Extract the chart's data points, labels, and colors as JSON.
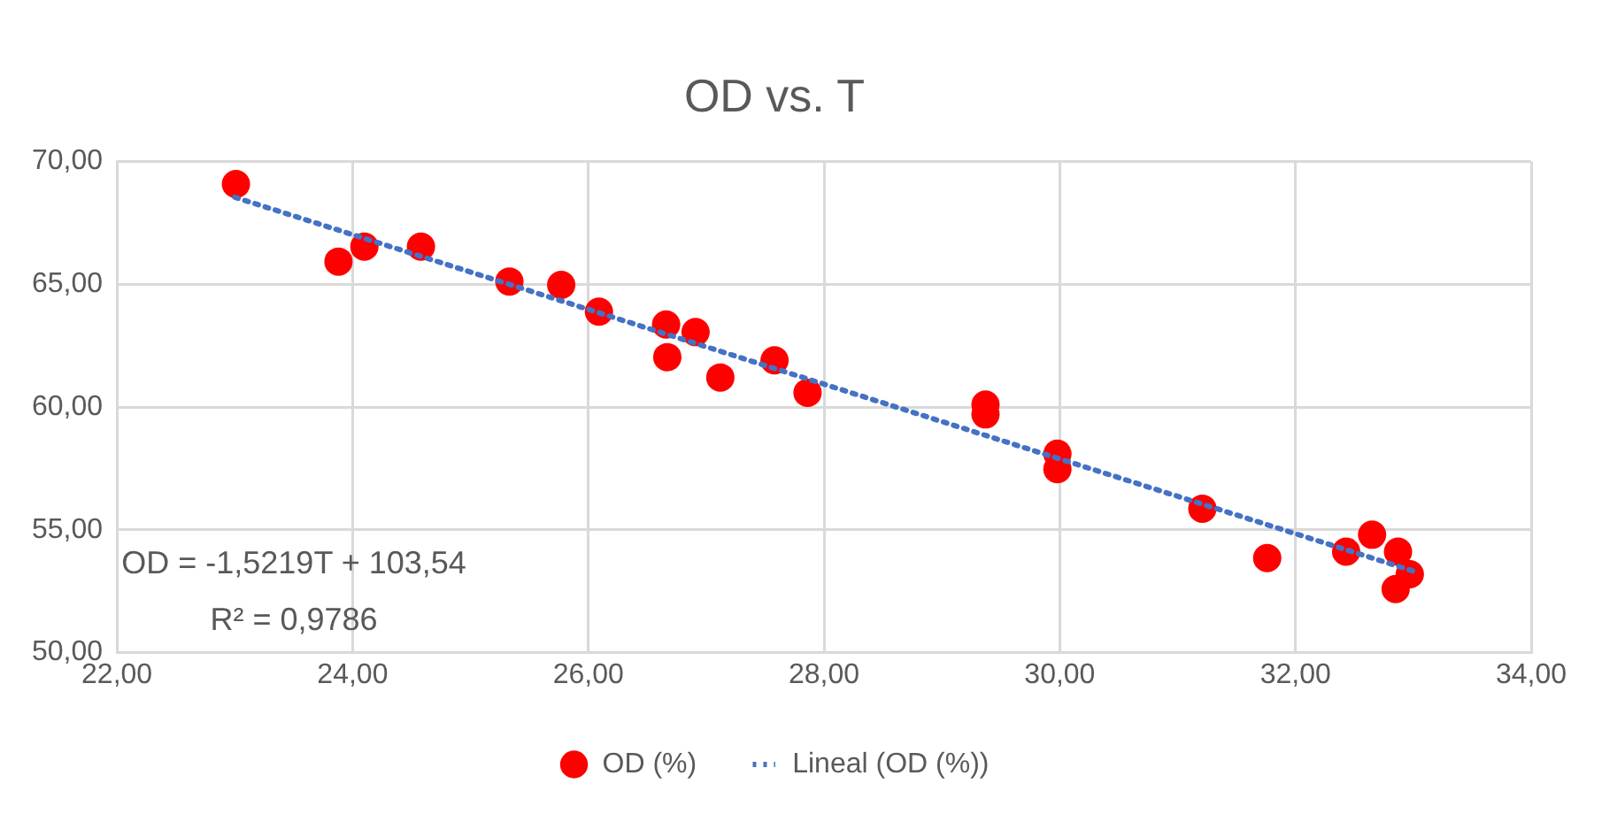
{
  "chart_data": {
    "type": "scatter",
    "title": "OD vs. T",
    "xlim": [
      22,
      34
    ],
    "xticks": [
      {
        "value": 22,
        "label": "22,00"
      },
      {
        "value": 24,
        "label": "24,00"
      },
      {
        "value": 26,
        "label": "26,00"
      },
      {
        "value": 28,
        "label": "28,00"
      },
      {
        "value": 30,
        "label": "30,00"
      },
      {
        "value": 32,
        "label": "32,00"
      },
      {
        "value": 34,
        "label": "34,00"
      }
    ],
    "ylim": [
      50,
      70
    ],
    "yticks": [
      {
        "value": 50,
        "label": "50,00"
      },
      {
        "value": 55,
        "label": "55,00"
      },
      {
        "value": 60,
        "label": "60,00"
      },
      {
        "value": 65,
        "label": "65,00"
      },
      {
        "value": 70,
        "label": "70,00"
      }
    ],
    "grid": true,
    "legend": "bottom",
    "annotations": [
      "OD = -1,5219T + 103,54",
      "R² = 0,9786"
    ],
    "series": [
      {
        "name": "OD (%)",
        "type": "scatter",
        "color": "#ff0000",
        "marker": "circle",
        "x": [
          23.01,
          23.88,
          24.1,
          24.58,
          25.33,
          25.77,
          26.09,
          26.66,
          26.91,
          26.67,
          27.12,
          27.58,
          27.86,
          29.37,
          29.37,
          29.98,
          29.98,
          31.21,
          31.76,
          32.43,
          32.65,
          32.87,
          32.97,
          32.85
        ],
        "values": [
          69.08,
          65.92,
          66.53,
          66.53,
          65.11,
          64.97,
          63.88,
          63.36,
          63.05,
          62.03,
          61.2,
          61.9,
          60.58,
          60.1,
          59.7,
          58.1,
          57.47,
          55.86,
          53.85,
          54.11,
          54.8,
          54.11,
          53.19,
          52.59
        ]
      },
      {
        "name": "Lineal (OD (%))",
        "type": "line",
        "color": "#4472c4",
        "marker": "none",
        "line_style": "dotted",
        "x": [
          23,
          33
        ],
        "values": [
          68.54,
          53.32
        ]
      }
    ]
  }
}
